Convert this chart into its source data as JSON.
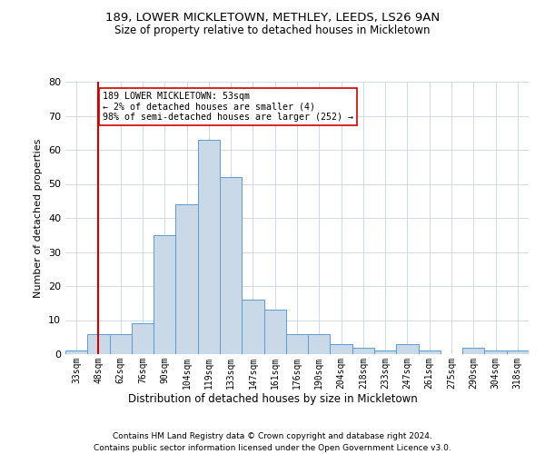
{
  "title1": "189, LOWER MICKLETOWN, METHLEY, LEEDS, LS26 9AN",
  "title2": "Size of property relative to detached houses in Mickletown",
  "xlabel": "Distribution of detached houses by size in Mickletown",
  "ylabel": "Number of detached properties",
  "categories": [
    "33sqm",
    "48sqm",
    "62sqm",
    "76sqm",
    "90sqm",
    "104sqm",
    "119sqm",
    "133sqm",
    "147sqm",
    "161sqm",
    "176sqm",
    "190sqm",
    "204sqm",
    "218sqm",
    "233sqm",
    "247sqm",
    "261sqm",
    "275sqm",
    "290sqm",
    "304sqm",
    "318sqm"
  ],
  "values": [
    1,
    6,
    6,
    9,
    35,
    44,
    63,
    52,
    16,
    13,
    6,
    6,
    3,
    2,
    1,
    3,
    1,
    0,
    2,
    1,
    1
  ],
  "bar_color": "#c9d9e8",
  "bar_edge_color": "#5b9bd5",
  "vline_x": 1,
  "vline_color": "#cc0000",
  "annotation_text": "189 LOWER MICKLETOWN: 53sqm\n← 2% of detached houses are smaller (4)\n98% of semi-detached houses are larger (252) →",
  "annotation_box_color": "#ffffff",
  "annotation_box_edge": "#cc0000",
  "ylim": [
    0,
    80
  ],
  "yticks": [
    0,
    10,
    20,
    30,
    40,
    50,
    60,
    70,
    80
  ],
  "footer1": "Contains HM Land Registry data © Crown copyright and database right 2024.",
  "footer2": "Contains public sector information licensed under the Open Government Licence v3.0.",
  "bg_color": "#ffffff",
  "grid_color": "#c8d4e0"
}
